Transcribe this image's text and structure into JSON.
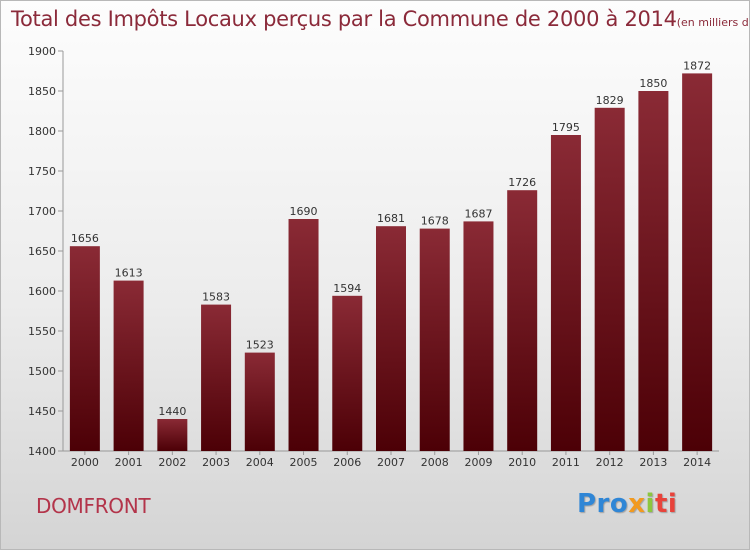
{
  "title": "Total des Impôts Locaux perçus par la Commune de 2000 à 2014",
  "unit": "(en milliers d'€)",
  "city": "DOMFRONT",
  "logo": {
    "p1": "Pro",
    "p2": "x",
    "p3": "i",
    "p4": "ti"
  },
  "colors": {
    "bar_top": "#8a2a35",
    "bar_bottom": "#4c0006",
    "title": "#8b2a3a"
  },
  "chart_data": {
    "type": "bar",
    "categories": [
      "2000",
      "2001",
      "2002",
      "2003",
      "2004",
      "2005",
      "2006",
      "2007",
      "2008",
      "2009",
      "2010",
      "2011",
      "2012",
      "2013",
      "2014"
    ],
    "values": [
      1656,
      1613,
      1440,
      1583,
      1523,
      1690,
      1594,
      1681,
      1678,
      1687,
      1726,
      1795,
      1829,
      1850,
      1872
    ],
    "ylim": [
      1400,
      1900
    ],
    "yticks": [
      1400,
      1450,
      1500,
      1550,
      1600,
      1650,
      1700,
      1750,
      1800,
      1850,
      1900
    ],
    "grid": false,
    "legend": "none"
  }
}
